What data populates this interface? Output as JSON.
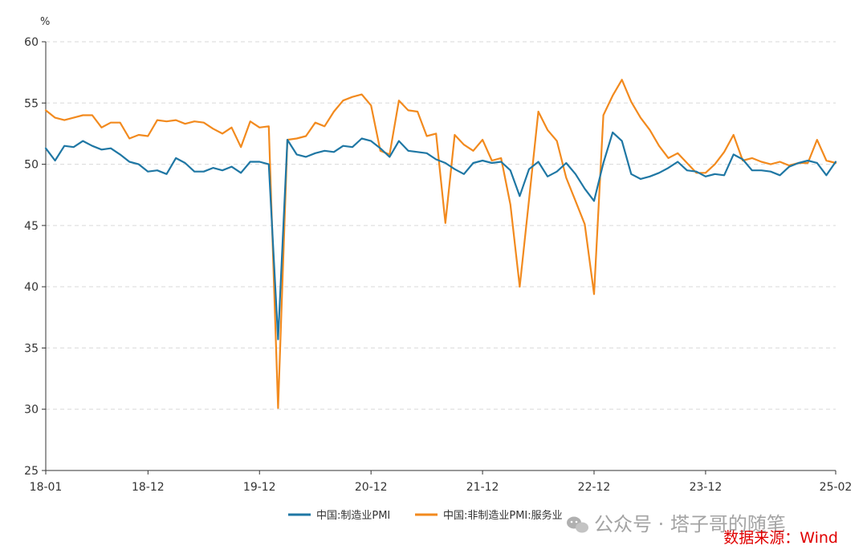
{
  "chart_data": {
    "type": "line",
    "y_unit": "%",
    "ylim": [
      25,
      60
    ],
    "y_ticks": [
      "25",
      "30",
      "35",
      "40",
      "45",
      "50",
      "55",
      "60"
    ],
    "x_tick_labels": [
      "18-01",
      "18-12",
      "19-12",
      "20-12",
      "21-12",
      "22-12",
      "23-12",
      "25-02"
    ],
    "x_tick_indices": [
      0,
      11,
      23,
      35,
      47,
      59,
      71,
      85
    ],
    "grid": "horizontal-dashed",
    "legend_position": "bottom-center",
    "series": [
      {
        "name": "中国:制造业PMI",
        "color": "#1f77a4",
        "values": [
          51.3,
          50.3,
          51.5,
          51.4,
          51.9,
          51.5,
          51.2,
          51.3,
          50.8,
          50.2,
          50.0,
          49.4,
          49.5,
          49.2,
          50.5,
          50.1,
          49.4,
          49.4,
          49.7,
          49.5,
          49.8,
          49.3,
          50.2,
          50.2,
          50.0,
          35.7,
          52.0,
          50.8,
          50.6,
          50.9,
          51.1,
          51.0,
          51.5,
          51.4,
          52.1,
          51.9,
          51.3,
          50.6,
          51.9,
          51.1,
          51.0,
          50.9,
          50.4,
          50.1,
          49.6,
          49.2,
          50.1,
          50.3,
          50.1,
          50.2,
          49.5,
          47.4,
          49.6,
          50.2,
          49.0,
          49.4,
          50.1,
          49.2,
          48.0,
          47.0,
          50.1,
          52.6,
          51.9,
          49.2,
          48.8,
          49.0,
          49.3,
          49.7,
          50.2,
          49.5,
          49.4,
          49.0,
          49.2,
          49.1,
          50.8,
          50.4,
          49.5,
          49.5,
          49.4,
          49.1,
          49.8,
          50.1,
          50.3,
          50.1,
          49.1,
          50.2
        ]
      },
      {
        "name": "中国:非制造业PMI:服务业",
        "color": "#f28a1e",
        "values": [
          54.4,
          53.8,
          53.6,
          53.8,
          54.0,
          54.0,
          53.0,
          53.4,
          53.4,
          52.1,
          52.4,
          52.3,
          53.6,
          53.5,
          53.6,
          53.3,
          53.5,
          53.4,
          52.9,
          52.5,
          53.0,
          51.4,
          53.5,
          53.0,
          53.1,
          30.1,
          52.0,
          52.1,
          52.3,
          53.4,
          53.1,
          54.3,
          55.2,
          55.5,
          55.7,
          54.8,
          51.1,
          50.8,
          55.2,
          54.4,
          54.3,
          52.3,
          52.5,
          45.2,
          52.4,
          51.6,
          51.1,
          52.0,
          50.3,
          50.5,
          46.7,
          40.0,
          47.1,
          54.3,
          52.8,
          51.9,
          48.9,
          47.0,
          45.1,
          39.4,
          54.0,
          55.6,
          56.9,
          55.1,
          53.8,
          52.8,
          51.5,
          50.5,
          50.9,
          50.1,
          49.3,
          49.3,
          50.0,
          51.0,
          52.4,
          50.3,
          50.5,
          50.2,
          50.0,
          50.2,
          49.9,
          50.1,
          50.1,
          52.0,
          50.3,
          50.1
        ]
      }
    ]
  },
  "watermark": {
    "text": "公众号 · 塔子哥的随笔",
    "icon": "wechat-icon"
  },
  "source_note": "数据来源：Wind"
}
